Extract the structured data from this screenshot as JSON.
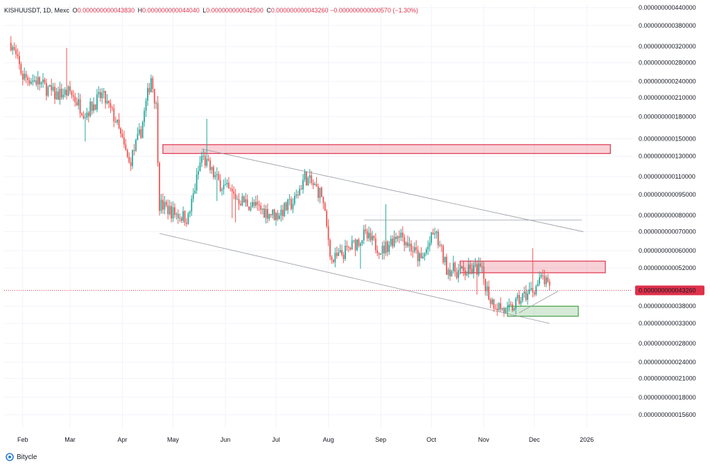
{
  "header": {
    "symbol": "KISHUUSDT, 1D, Mexc",
    "o_label": "O",
    "o_value": "0.000000000043830",
    "h_label": "H",
    "h_value": "0.000000000044040",
    "l_label": "L",
    "l_value": "0.000000000042500",
    "c_label": "C",
    "c_value": "0.000000000043260",
    "change": "−0.000000000000570 (−1.30%)"
  },
  "brand": {
    "name": "Bitycle",
    "icon": "bitycle-logo-icon"
  },
  "colors": {
    "up": "#26a69a",
    "down": "#ef5350",
    "zone_red": "#e0314b",
    "zone_green": "#43a047",
    "trend": "#9598a1"
  },
  "chart_data": {
    "type": "candlestick",
    "price_scale": "log",
    "y_ticks": [
      "0.000000000440000",
      "0.000000000380000",
      "0.000000000320000",
      "0.000000000280000",
      "0.000000000240000",
      "0.000000000210000",
      "0.000000000180000",
      "0.000000000150000",
      "0.000000000130000",
      "0.000000000110000",
      "0.000000000095000",
      "0.000000000080000",
      "0.000000000070000",
      "0.000000000060000",
      "0.000000000052000",
      "0.000000000038000",
      "0.000000000033000",
      "0.000000000028000",
      "0.000000000024000",
      "0.000000000021000",
      "0.000000000018000",
      "0.000000000015600"
    ],
    "x_ticks": [
      "Feb",
      "Mar",
      "Apr",
      "May",
      "Jun",
      "Jul",
      "Aug",
      "Sep",
      "Oct",
      "Nov",
      "Dec",
      "2026"
    ],
    "last_price": "0.000000000043260",
    "series": [
      {
        "d": "2025-01-25",
        "c": 3.3e-10
      },
      {
        "d": "2025-02-01",
        "c": 2.5e-10
      },
      {
        "d": "2025-02-10",
        "c": 2.4e-10
      },
      {
        "d": "2025-02-20",
        "c": 2.15e-10
      },
      {
        "d": "2025-03-01",
        "c": 2.2e-10
      },
      {
        "d": "2025-03-10",
        "c": 1.85e-10
      },
      {
        "d": "2025-03-20",
        "c": 2.15e-10
      },
      {
        "d": "2025-03-28",
        "c": 1.75e-10
      },
      {
        "d": "2025-04-05",
        "c": 1.22e-10
      },
      {
        "d": "2025-04-12",
        "c": 1.6e-10
      },
      {
        "d": "2025-04-18",
        "c": 2.5e-10
      },
      {
        "d": "2025-04-21",
        "c": 1.95e-10
      },
      {
        "d": "2025-04-23",
        "c": 8.8e-11
      },
      {
        "d": "2025-05-01",
        "c": 8.2e-11
      },
      {
        "d": "2025-05-10",
        "c": 7.8e-11
      },
      {
        "d": "2025-05-18",
        "c": 1.3e-10
      },
      {
        "d": "2025-05-28",
        "c": 1.05e-10
      },
      {
        "d": "2025-06-08",
        "c": 9.2e-11
      },
      {
        "d": "2025-06-20",
        "c": 8.5e-11
      },
      {
        "d": "2025-07-01",
        "c": 8e-11
      },
      {
        "d": "2025-07-12",
        "c": 9e-11
      },
      {
        "d": "2025-07-18",
        "c": 1.1e-10
      },
      {
        "d": "2025-07-28",
        "c": 9.5e-11
      },
      {
        "d": "2025-08-03",
        "c": 5.5e-11
      },
      {
        "d": "2025-08-12",
        "c": 6e-11
      },
      {
        "d": "2025-08-22",
        "c": 6.8e-11
      },
      {
        "d": "2025-09-02",
        "c": 6e-11
      },
      {
        "d": "2025-09-12",
        "c": 7e-11
      },
      {
        "d": "2025-09-25",
        "c": 5.5e-11
      },
      {
        "d": "2025-10-03",
        "c": 7e-11
      },
      {
        "d": "2025-10-10",
        "c": 5.2e-11
      },
      {
        "d": "2025-10-20",
        "c": 5e-11
      },
      {
        "d": "2025-10-30",
        "c": 5.2e-11
      },
      {
        "d": "2025-11-05",
        "c": 4e-11
      },
      {
        "d": "2025-11-15",
        "c": 3.6e-11
      },
      {
        "d": "2025-11-22",
        "c": 4e-11
      },
      {
        "d": "2025-12-01",
        "c": 4.4e-11
      },
      {
        "d": "2025-12-06",
        "c": 4.8e-11
      },
      {
        "d": "2025-12-10",
        "c": 4.33e-11
      }
    ],
    "zones": [
      {
        "name": "supply-zone-upper",
        "color": "red",
        "x0": "2025-04-25",
        "x1": "2026-01-15",
        "y0": 1.33e-10,
        "y1": 1.43e-10
      },
      {
        "name": "supply-zone-lower",
        "color": "red",
        "x0": "2025-10-18",
        "x1": "2026-01-12",
        "y0": 5e-11,
        "y1": 5.5e-11
      },
      {
        "name": "demand-zone",
        "color": "green",
        "x0": "2025-11-15",
        "x1": "2025-12-27",
        "y0": 3.5e-11,
        "y1": 3.8e-11
      }
    ],
    "lines": [
      {
        "name": "channel-upper-line",
        "x0": "2025-05-18",
        "y0": 1.38e-10,
        "x1": "2025-12-30",
        "y1": 7e-11
      },
      {
        "name": "channel-lower-line",
        "x0": "2025-04-23",
        "y0": 6.9e-11,
        "x1": "2025-12-10",
        "y1": 3.3e-11
      },
      {
        "name": "resistance-line",
        "x0": "2025-08-22",
        "y0": 7.7e-11,
        "x1": "2025-12-29",
        "y1": 7.7e-11
      },
      {
        "name": "support-trend-line",
        "x0": "2025-11-22",
        "y0": 3.6e-11,
        "x1": "2025-12-15",
        "y1": 4.3e-11
      }
    ]
  }
}
